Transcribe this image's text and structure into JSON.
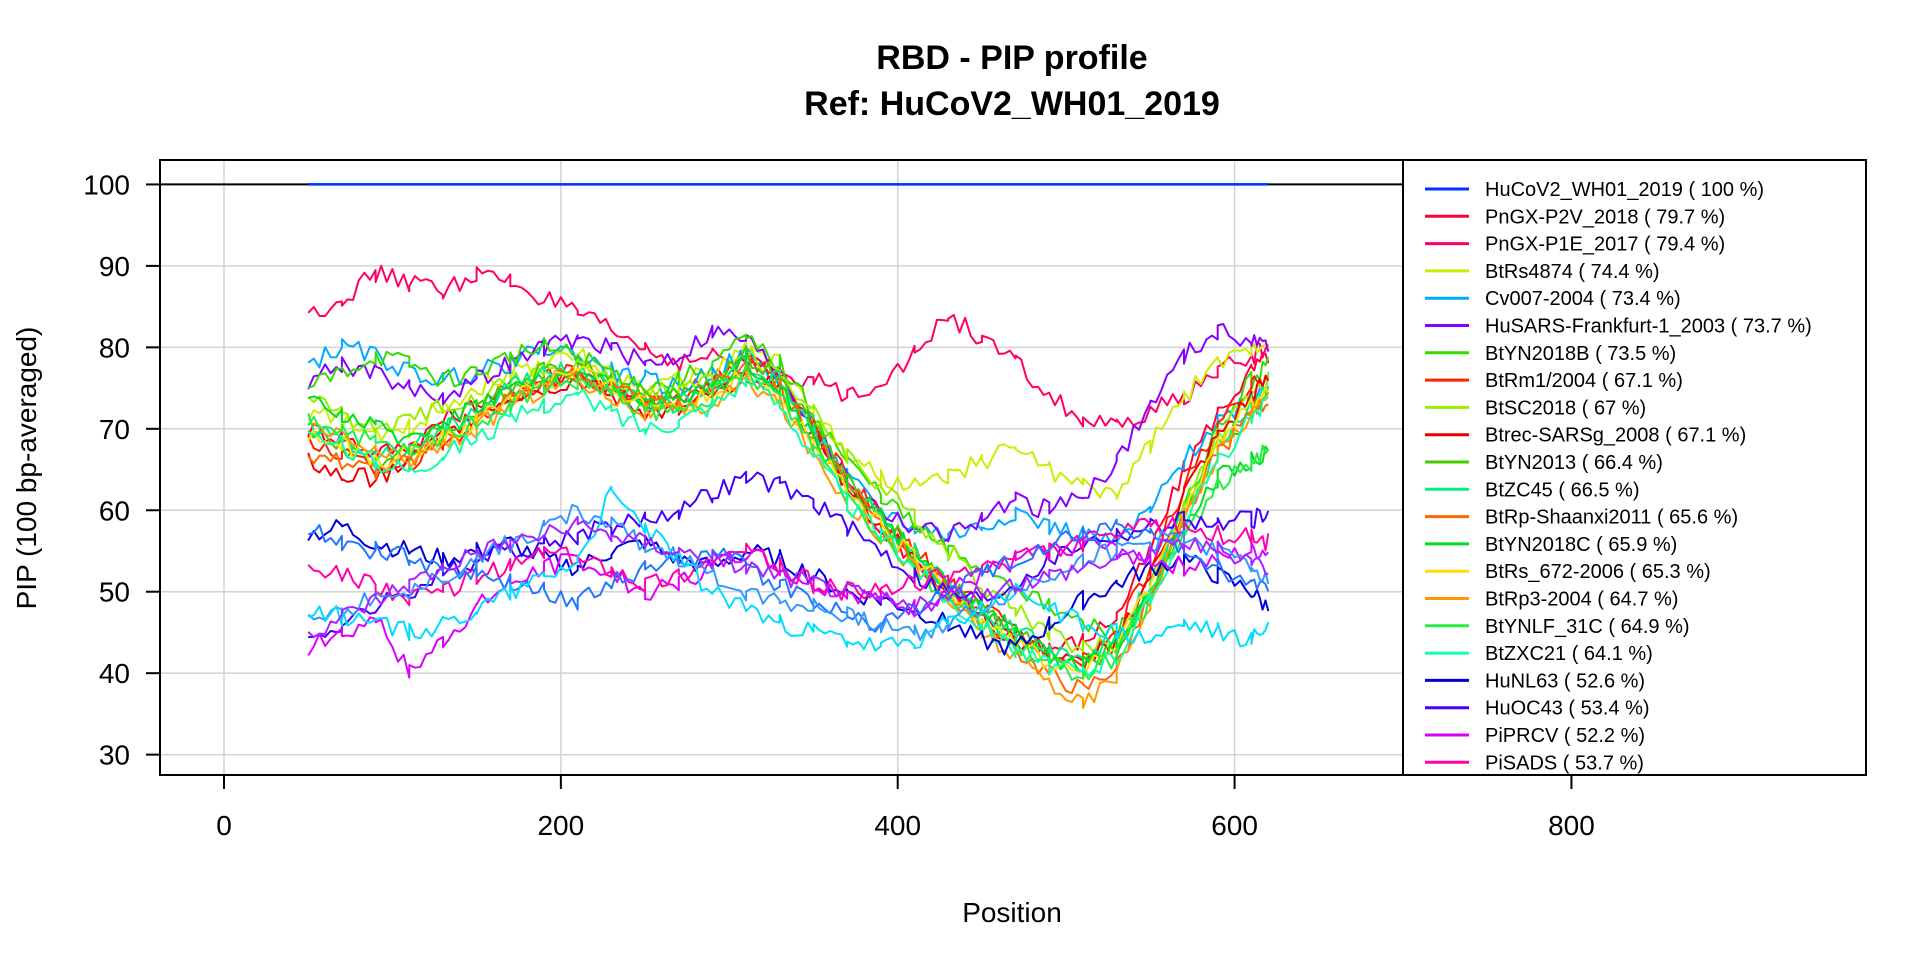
{
  "chart_data": {
    "type": "line",
    "title": "RBD - PIP profile",
    "subtitle": "Ref: HuCoV2_WH01_2019",
    "xlabel": "Position",
    "ylabel": "PIP (100 bp-averaged)",
    "xlim": [
      -38,
      700
    ],
    "ylim": [
      27.5,
      103
    ],
    "x_ticks": [
      0,
      200,
      400,
      600,
      800
    ],
    "y_ticks": [
      30,
      40,
      50,
      60,
      70,
      80,
      90,
      100
    ],
    "grid": true,
    "grid_x": [
      0,
      200,
      400,
      600
    ],
    "grid_y": [
      30,
      40,
      50,
      60,
      70,
      80,
      90,
      100
    ],
    "reference_line_y": 100,
    "legend_position": "right (outside plot)",
    "x": [
      50,
      70,
      90,
      110,
      130,
      150,
      170,
      190,
      210,
      230,
      250,
      270,
      290,
      310,
      330,
      350,
      370,
      390,
      410,
      430,
      450,
      470,
      490,
      510,
      530,
      550,
      570,
      590,
      610,
      620
    ],
    "series": [
      {
        "name": "HuCoV2_WH01_2019 ( 100 %)",
        "color": "#0033ff",
        "values": [
          100,
          100,
          100,
          100,
          100,
          100,
          100,
          100,
          100,
          100,
          100,
          100,
          100,
          100,
          100,
          100,
          100,
          100,
          100,
          100,
          100,
          100,
          100,
          100,
          100,
          100,
          100,
          100,
          100,
          100
        ]
      },
      {
        "name": "PnGX-P2V_2018 ( 79.7 %)",
        "color": "#ff0033",
        "values": [
          70,
          69,
          67,
          68,
          71,
          73,
          75,
          76,
          77,
          75,
          73,
          74,
          76,
          79,
          77,
          70,
          63,
          58,
          54,
          50,
          47,
          45,
          43,
          44,
          47,
          55,
          65,
          72,
          77,
          79
        ]
      },
      {
        "name": "PnGX-P1E_2017 ( 79.4 %)",
        "color": "#ff0066",
        "values": [
          84,
          86,
          89,
          88,
          87,
          89,
          88,
          86,
          84,
          82,
          80,
          78,
          79,
          78,
          77,
          76,
          74,
          76,
          79,
          84,
          81,
          78,
          74,
          71,
          70,
          72,
          74,
          77,
          79,
          80
        ]
      },
      {
        "name": "BtRs4874 ( 74.4 %)",
        "color": "#ccee00",
        "values": [
          72,
          71,
          69,
          70,
          73,
          75,
          77,
          78,
          79,
          77,
          75,
          76,
          77,
          80,
          78,
          72,
          67,
          64,
          63,
          64,
          66,
          68,
          65,
          63,
          62,
          68,
          74,
          78,
          80,
          81
        ]
      },
      {
        "name": "Cv007-2004 ( 73.4 %)",
        "color": "#00aaff",
        "values": [
          78,
          80,
          79,
          77,
          76,
          77,
          78,
          80,
          79,
          77,
          76,
          75,
          77,
          79,
          76,
          70,
          64,
          60,
          58,
          57,
          58,
          60,
          58,
          57,
          56,
          60,
          66,
          71,
          74,
          76
        ]
      },
      {
        "name": "HuSARS-Frankfurt-1_2003 ( 73.7 %)",
        "color": "#8800ff",
        "values": [
          76,
          78,
          77,
          75,
          74,
          76,
          78,
          80,
          81,
          80,
          78,
          79,
          82,
          81,
          77,
          70,
          64,
          60,
          58,
          57,
          59,
          61,
          60,
          62,
          66,
          73,
          79,
          82,
          81,
          80
        ]
      },
      {
        "name": "BtYN2018B ( 73.5 %)",
        "color": "#33dd00",
        "values": [
          75,
          77,
          79,
          78,
          76,
          77,
          79,
          80,
          79,
          77,
          75,
          76,
          78,
          81,
          78,
          72,
          66,
          62,
          58,
          55,
          53,
          51,
          48,
          46,
          45,
          50,
          60,
          70,
          76,
          78
        ]
      },
      {
        "name": "BtRm1/2004 ( 67.1 %)",
        "color": "#ff2200",
        "values": [
          68,
          67,
          65,
          66,
          68,
          71,
          74,
          76,
          77,
          75,
          73,
          73,
          75,
          78,
          76,
          70,
          64,
          59,
          55,
          51,
          48,
          45,
          43,
          42,
          45,
          53,
          63,
          70,
          75,
          77
        ]
      },
      {
        "name": "BtSC2018 ( 67 %)",
        "color": "#99ee00",
        "values": [
          74,
          72,
          70,
          71,
          73,
          74,
          76,
          77,
          78,
          76,
          74,
          75,
          76,
          79,
          77,
          72,
          67,
          63,
          59,
          55,
          51,
          48,
          45,
          43,
          44,
          50,
          60,
          69,
          74,
          76
        ]
      },
      {
        "name": "Btrec-SARSg_2008 ( 67.1 %)",
        "color": "#ee0000",
        "values": [
          66,
          64,
          64,
          66,
          69,
          72,
          74,
          75,
          76,
          74,
          72,
          72,
          74,
          77,
          75,
          69,
          63,
          58,
          54,
          50,
          47,
          44,
          42,
          41,
          44,
          52,
          62,
          69,
          74,
          76
        ]
      },
      {
        "name": "BtYN2013 ( 66.4 %)",
        "color": "#44cc00",
        "values": [
          70,
          68,
          66,
          67,
          70,
          72,
          75,
          77,
          78,
          76,
          74,
          74,
          76,
          79,
          76,
          70,
          64,
          59,
          55,
          51,
          48,
          45,
          43,
          41,
          43,
          50,
          59,
          67,
          72,
          74
        ]
      },
      {
        "name": "BtZC45 ( 66.5 %)",
        "color": "#00ee88",
        "values": [
          71,
          69,
          67,
          67,
          70,
          72,
          75,
          77,
          77,
          75,
          73,
          73,
          75,
          78,
          76,
          70,
          64,
          59,
          55,
          51,
          47,
          45,
          43,
          42,
          44,
          51,
          60,
          68,
          73,
          75
        ]
      },
      {
        "name": "BtRp-Shaanxi2011 ( 65.6 %)",
        "color": "#ff6600",
        "values": [
          67,
          66,
          65,
          66,
          69,
          71,
          74,
          76,
          77,
          75,
          73,
          73,
          75,
          78,
          75,
          69,
          63,
          58,
          54,
          50,
          46,
          43,
          40,
          38,
          41,
          49,
          59,
          67,
          72,
          74
        ]
      },
      {
        "name": "BtYN2018C ( 65.9 %)",
        "color": "#00dd22",
        "values": [
          73,
          72,
          70,
          69,
          71,
          73,
          75,
          76,
          77,
          75,
          73,
          74,
          75,
          78,
          75,
          69,
          63,
          59,
          55,
          51,
          48,
          45,
          42,
          41,
          43,
          50,
          58,
          64,
          66,
          67
        ]
      },
      {
        "name": "BtRs_672-2006 ( 65.3 %)",
        "color": "#ffdd00",
        "values": [
          69,
          68,
          66,
          67,
          69,
          71,
          74,
          76,
          77,
          75,
          73,
          73,
          74,
          77,
          74,
          68,
          62,
          58,
          54,
          50,
          47,
          44,
          41,
          40,
          43,
          51,
          60,
          68,
          73,
          75
        ]
      },
      {
        "name": "BtRp3-2004 ( 64.7 %)",
        "color": "#ff9900",
        "values": [
          70,
          69,
          67,
          66,
          68,
          70,
          73,
          75,
          76,
          74,
          72,
          72,
          73,
          76,
          73,
          67,
          61,
          57,
          53,
          49,
          45,
          42,
          39,
          36,
          40,
          49,
          59,
          67,
          72,
          74
        ]
      },
      {
        "name": "BtYNLF_31C ( 64.9 %)",
        "color": "#22ee44",
        "values": [
          71,
          70,
          68,
          67,
          69,
          71,
          73,
          75,
          76,
          74,
          72,
          72,
          74,
          77,
          74,
          68,
          62,
          57,
          53,
          49,
          46,
          43,
          41,
          40,
          42,
          49,
          57,
          63,
          66,
          68
        ]
      },
      {
        "name": "BtZXC21 ( 64.1 %)",
        "color": "#11ffaa",
        "values": [
          69,
          68,
          66,
          65,
          67,
          69,
          71,
          73,
          74,
          72,
          70,
          71,
          73,
          76,
          73,
          67,
          61,
          57,
          53,
          49,
          46,
          43,
          41,
          40,
          42,
          49,
          58,
          66,
          71,
          73
        ]
      },
      {
        "name": "HuNL63 ( 52.6 %)",
        "color": "#0000dd",
        "values": [
          57,
          58,
          56,
          55,
          54,
          55,
          56,
          54,
          53,
          55,
          56,
          54,
          53,
          55,
          54,
          52,
          50,
          49,
          48,
          46,
          44,
          43,
          46,
          49,
          51,
          53,
          54,
          52,
          50,
          48
        ]
      },
      {
        "name": "HuOC43 ( 53.4 %)",
        "color": "#4400ff",
        "values": [
          44,
          46,
          48,
          50,
          52,
          54,
          55,
          56,
          57,
          58,
          59,
          60,
          62,
          64,
          63,
          61,
          58,
          55,
          52,
          50,
          49,
          51,
          54,
          56,
          57,
          58,
          59,
          58,
          59,
          59
        ]
      },
      {
        "name": "PiPRCV ( 52.2 %)",
        "color": "#dd00ff",
        "values": [
          43,
          45,
          47,
          40,
          44,
          48,
          51,
          53,
          54,
          52,
          50,
          51,
          53,
          55,
          53,
          51,
          50,
          49,
          48,
          50,
          52,
          54,
          55,
          56,
          55,
          54,
          53,
          54,
          55,
          55
        ]
      },
      {
        "name": "PiSADS ( 53.7 %)",
        "color": "#ff00aa",
        "values": [
          53,
          52,
          51,
          49,
          50,
          52,
          53,
          55,
          54,
          53,
          51,
          52,
          54,
          55,
          53,
          51,
          50,
          50,
          51,
          52,
          53,
          54,
          55,
          56,
          57,
          58,
          58,
          57,
          57,
          56
        ]
      },
      {
        "name": "",
        "color": "#2277ff",
        "values": [
          58,
          56,
          55,
          54,
          53,
          52,
          51,
          50,
          49,
          51,
          53,
          54,
          55,
          53,
          51,
          49,
          47,
          46,
          48,
          50,
          52,
          54,
          56,
          57,
          58,
          57,
          55,
          53,
          51,
          50
        ]
      },
      {
        "name": "",
        "color": "#3399ff",
        "values": [
          47,
          48,
          49,
          50,
          52,
          54,
          56,
          58,
          60,
          58,
          56,
          54,
          52,
          50,
          49,
          48,
          47,
          46,
          45,
          46,
          48,
          50,
          52,
          54,
          55,
          56,
          57,
          55,
          53,
          52
        ]
      },
      {
        "name": "",
        "color": "#00ddff",
        "values": [
          48,
          47,
          46,
          45,
          46,
          48,
          50,
          52,
          54,
          62,
          58,
          54,
          50,
          48,
          46,
          45,
          44,
          43,
          44,
          46,
          48,
          50,
          48,
          46,
          45,
          44,
          46,
          45,
          44,
          46
        ]
      },
      {
        "name": "",
        "color": "#aa22ff",
        "values": [
          45,
          47,
          49,
          51,
          53,
          55,
          56,
          57,
          58,
          57,
          56,
          55,
          54,
          53,
          52,
          51,
          50,
          49,
          48,
          49,
          50,
          51,
          52,
          53,
          54,
          55,
          56,
          55,
          54,
          53
        ]
      }
    ]
  }
}
